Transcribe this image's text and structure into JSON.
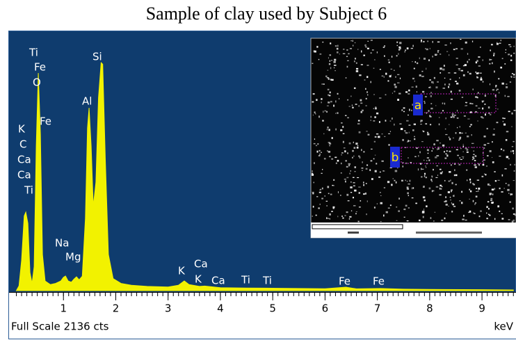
{
  "chart_data": {
    "type": "area",
    "title": "Sample of clay used by Subject 6",
    "x": [
      0.1,
      0.15,
      0.2,
      0.25,
      0.28,
      0.32,
      0.36,
      0.4,
      0.44,
      0.48,
      0.52,
      0.56,
      0.6,
      0.65,
      0.75,
      0.85,
      0.95,
      1.0,
      1.04,
      1.09,
      1.15,
      1.2,
      1.25,
      1.3,
      1.36,
      1.42,
      1.46,
      1.49,
      1.53,
      1.57,
      1.62,
      1.67,
      1.72,
      1.75,
      1.8,
      1.86,
      1.95,
      2.1,
      2.3,
      2.6,
      3.0,
      3.2,
      3.31,
      3.4,
      3.6,
      3.7,
      4.0,
      4.5,
      5.0,
      5.5,
      6.0,
      6.4,
      6.6,
      7.06,
      7.5,
      8.0,
      9.0,
      9.6
    ],
    "values": [
      0,
      40,
      250,
      620,
      652,
      560,
      150,
      60,
      200,
      1200,
      1807,
      1300,
      300,
      80,
      50,
      60,
      80,
      110,
      121,
      80,
      70,
      95,
      115,
      90,
      120,
      600,
      1350,
      1518,
      1200,
      700,
      900,
      1600,
      1893,
      1880,
      1100,
      300,
      100,
      60,
      45,
      35,
      30,
      45,
      81,
      50,
      35,
      38,
      25,
      22,
      20,
      18,
      16,
      29,
      15,
      18,
      12,
      10,
      8,
      6
    ],
    "color": "#f2f200",
    "xlim": [
      0,
      9.65
    ],
    "xticks": [
      1,
      2,
      3,
      4,
      5,
      6,
      7,
      8,
      9
    ],
    "ylim": [
      0,
      2136
    ],
    "annotations": [
      "Ti",
      "Fe",
      "O",
      "Fe",
      "K",
      "C",
      "Ca",
      "Ca",
      "Ti",
      "Si",
      "Al",
      "Na",
      "Mg",
      "K",
      "Ca",
      "K",
      "Ca",
      "Ti",
      "Ti",
      "Fe",
      "Fe"
    ],
    "full_scale_label": "Full Scale 2136 cts",
    "x_unit": "keV",
    "inset_labels": [
      "a",
      "b"
    ]
  }
}
